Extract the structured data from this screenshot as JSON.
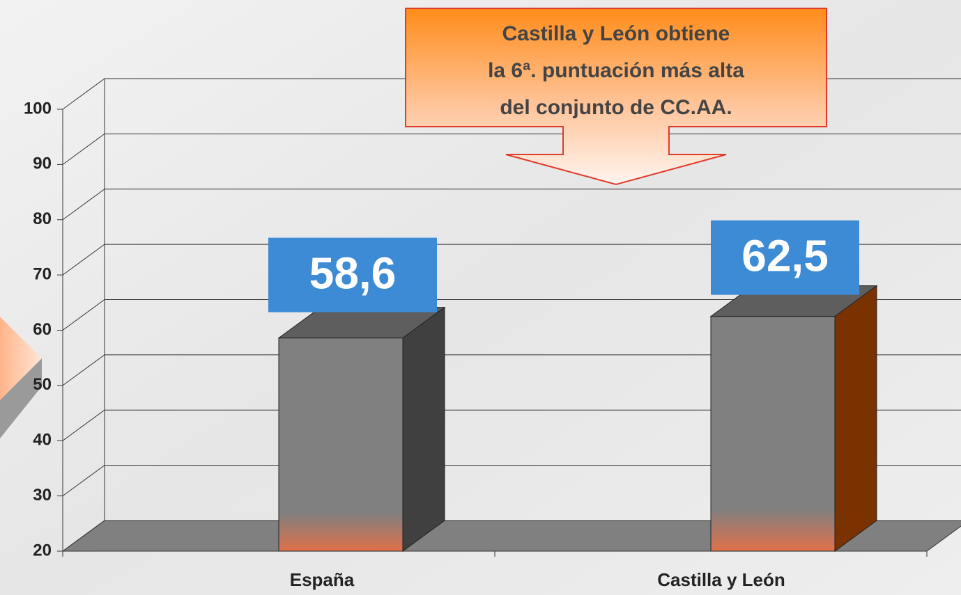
{
  "chart_data": {
    "type": "bar3d",
    "annotation": [
      "Castilla y León obtiene",
      "la 6ª. puntuación más alta",
      "del conjunto de CC.AA."
    ],
    "categories": [
      "España",
      "Castilla y León"
    ],
    "values": [
      58.6,
      62.5
    ],
    "value_labels": [
      "58,6",
      "62,5"
    ],
    "color": "#808080",
    "side_colors": [
      "#404040",
      "#7a3300"
    ],
    "ylim": [
      20,
      100
    ],
    "yticks": [
      20,
      30,
      40,
      50,
      60,
      70,
      80,
      90,
      100
    ],
    "grid": true
  }
}
